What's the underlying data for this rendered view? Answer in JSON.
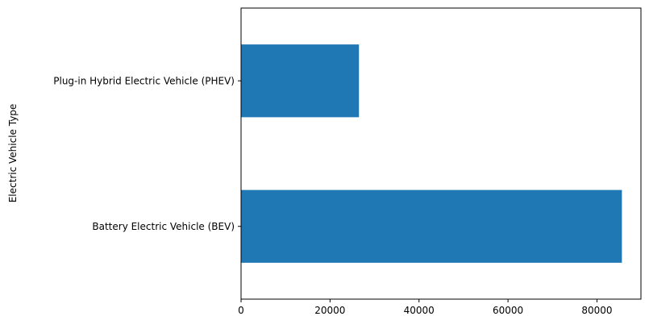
{
  "chart_data": {
    "type": "bar",
    "orientation": "horizontal",
    "title": "",
    "xlabel": "",
    "ylabel": "Electric Vehicle Type",
    "categories": [
      "Battery Electric Vehicle (BEV)",
      "Plug-in Hybrid Electric Vehicle (PHEV)"
    ],
    "values": [
      85600,
      26500
    ],
    "xlim": [
      0,
      89880
    ],
    "xticks": [
      0,
      20000,
      40000,
      60000,
      80000
    ],
    "xtick_labels": [
      "0",
      "20000",
      "40000",
      "60000",
      "80000"
    ],
    "bar_color": "#1f77b4",
    "grid": false,
    "legend": "none"
  }
}
